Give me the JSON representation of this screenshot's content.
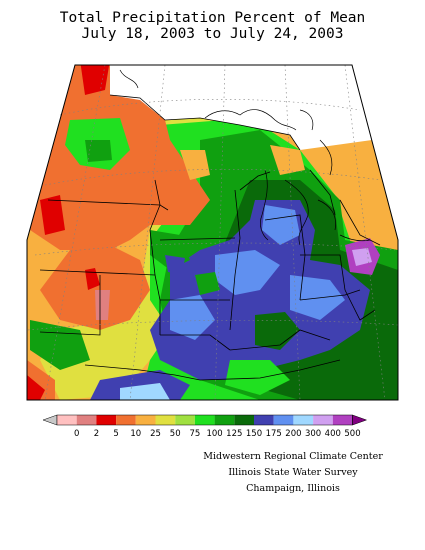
{
  "title": {
    "line1": "Total Precipitation Percent of Mean",
    "line2": "July 18, 2003 to July 24, 2003"
  },
  "legend": {
    "labels": [
      "0",
      "2",
      "5",
      "10",
      "25",
      "50",
      "75",
      "100",
      "125",
      "150",
      "175",
      "200",
      "300",
      "400",
      "500"
    ],
    "colors": [
      "#c8c8c8",
      "#ffc0c0",
      "#e08080",
      "#e00000",
      "#f07030",
      "#f8b040",
      "#e0e040",
      "#a0e040",
      "#20e020",
      "#10a010",
      "#0a6a0a",
      "#4040b0",
      "#6090f0",
      "#a0d8ff",
      "#d0a0f0",
      "#b040c0",
      "#800080"
    ]
  },
  "credits": {
    "line1": "Midwestern Regional Climate Center",
    "line2": "Illinois State Water Survey",
    "line3": "Champaign, Illinois"
  }
}
